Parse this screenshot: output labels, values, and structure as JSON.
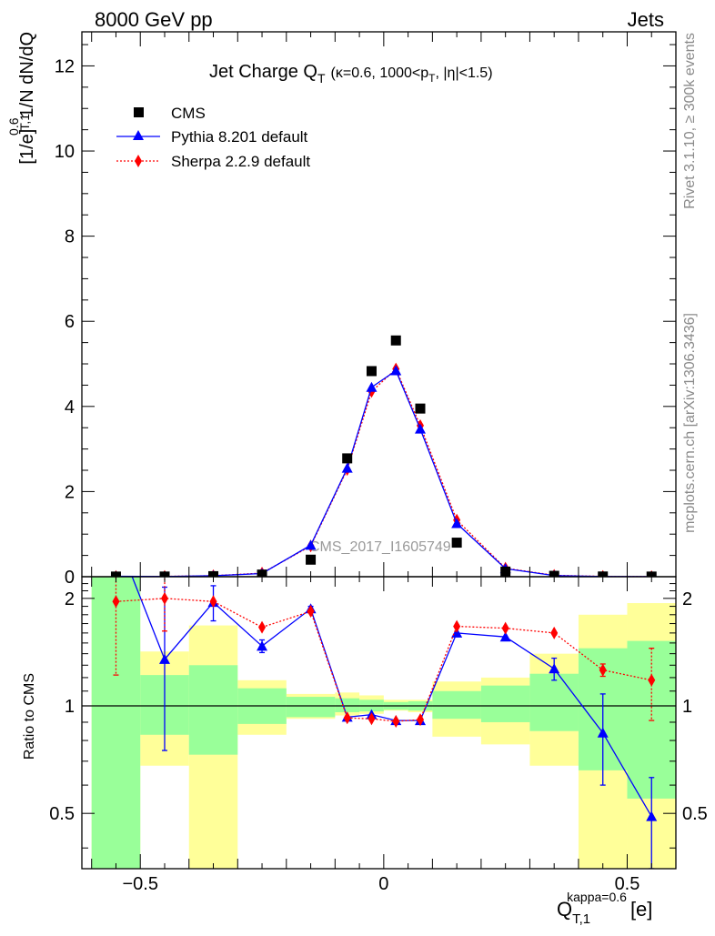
{
  "header": {
    "energy": "8000 GeV pp",
    "category": "Jets"
  },
  "side_labels": {
    "rivet": "Rivet 3.1.10, ≥ 300k events",
    "site": "mcplots.cern.ch [arXiv:1306.3436]"
  },
  "watermark": "CMS_2017_I1605749",
  "main_title": {
    "prefix": "Jet Charge Q",
    "prefix_sub": "T",
    "detail_a": "(κ=0.6, 1000<p",
    "detail_sub": "T",
    "detail_b": ", |η|<1.5)"
  },
  "y_axis_label": {
    "base": "1/N dN/dQ",
    "sup": "0.6",
    "sub": "T,1",
    "unit": "[1/e]"
  },
  "ratio_axis_label": "Ratio to CMS",
  "x_axis_label": {
    "base": "Q",
    "sup": "kappa=0.6",
    "sub": "T,1",
    "unit": "[e]"
  },
  "legend": [
    {
      "name": "CMS",
      "color": "#000000",
      "marker": "square"
    },
    {
      "name": "Pythia 8.201 default",
      "color": "#0000ff",
      "marker": "triangle"
    },
    {
      "name": "Sherpa 2.2.9 default",
      "color": "#ff0000",
      "marker": "diamond"
    }
  ],
  "chart_data": {
    "type": "line",
    "x_range": [
      -0.62,
      0.6
    ],
    "main_ylim": [
      0,
      12.8
    ],
    "ratio_ylim": [
      0.35,
      2.3
    ],
    "ratio_log_scale": true,
    "main_y_ticks": [
      0,
      2,
      4,
      6,
      8,
      10,
      12
    ],
    "x_ticks": [
      -0.5,
      0,
      0.5
    ],
    "x_tick_labels": [
      "−0.5",
      "0",
      "0.5"
    ],
    "ratio_ticks": [
      0.5,
      1,
      2
    ],
    "ratio_tick_labels": [
      "0.5",
      "1",
      "2"
    ],
    "bins": [
      [
        -0.6,
        -0.5
      ],
      [
        -0.5,
        -0.4
      ],
      [
        -0.4,
        -0.3
      ],
      [
        -0.3,
        -0.2
      ],
      [
        -0.2,
        -0.1
      ],
      [
        -0.1,
        -0.05
      ],
      [
        -0.05,
        0.0
      ],
      [
        0.0,
        0.05
      ],
      [
        0.05,
        0.1
      ],
      [
        0.1,
        0.2
      ],
      [
        0.2,
        0.3
      ],
      [
        0.3,
        0.4
      ],
      [
        0.4,
        0.5
      ],
      [
        0.5,
        0.6
      ]
    ],
    "x": [
      -0.55,
      -0.45,
      -0.35,
      -0.25,
      -0.15,
      -0.075,
      -0.025,
      0.025,
      0.075,
      0.15,
      0.25,
      0.35,
      0.45,
      0.55
    ],
    "series": [
      {
        "name": "CMS",
        "values": [
          0.003,
          0.004,
          0.012,
          0.05,
          0.4,
          2.78,
          4.83,
          5.55,
          3.95,
          0.8,
          0.12,
          0.02,
          0.005,
          0.003
        ]
      },
      {
        "name": "Pythia 8.201 default",
        "values": [
          0.01,
          0.006,
          0.023,
          0.075,
          0.74,
          2.55,
          4.45,
          4.84,
          3.47,
          1.25,
          0.19,
          0.027,
          0.004,
          0.0015
        ]
      },
      {
        "name": "Sherpa 2.2.9 default",
        "values": [
          0.006,
          0.008,
          0.024,
          0.085,
          0.72,
          2.52,
          4.35,
          4.88,
          3.55,
          1.33,
          0.2,
          0.033,
          0.007,
          0.0035
        ]
      }
    ],
    "ratio_series": [
      {
        "name": "Pythia 8.201 default",
        "values": [
          3.0,
          1.35,
          1.95,
          1.47,
          1.87,
          0.93,
          0.945,
          0.91,
          0.91,
          1.6,
          1.56,
          1.27,
          0.84,
          0.49
        ],
        "err_low": [
          0.0,
          0.6,
          0.22,
          0.06,
          0.03,
          0.0,
          0.0,
          0.0,
          0.0,
          0.0,
          0.0,
          0.09,
          0.24,
          0.14
        ],
        "err_high": [
          0.0,
          0.8,
          0.22,
          0.06,
          0.03,
          0.0,
          0.0,
          0.0,
          0.0,
          0.0,
          0.0,
          0.09,
          0.24,
          0.14
        ]
      },
      {
        "name": "Sherpa 2.2.9 default",
        "values": [
          1.96,
          2.0,
          1.96,
          1.66,
          1.84,
          0.925,
          0.92,
          0.905,
          0.915,
          1.67,
          1.65,
          1.6,
          1.26,
          1.18
        ],
        "err_low": [
          0.74,
          0.38,
          0.0,
          0.0,
          0.0,
          0.0,
          0.0,
          0.0,
          0.0,
          0.0,
          0.0,
          0.0,
          0.05,
          0.27
        ],
        "err_high": [
          0.74,
          0.38,
          0.0,
          0.0,
          0.0,
          0.0,
          0.0,
          0.0,
          0.0,
          0.0,
          0.0,
          0.0,
          0.05,
          0.27
        ]
      }
    ],
    "band_inner": [
      {
        "low": 0.35,
        "high": 3.0
      },
      {
        "low": 0.83,
        "high": 1.22
      },
      {
        "low": 0.73,
        "high": 1.3
      },
      {
        "low": 0.89,
        "high": 1.12
      },
      {
        "low": 0.93,
        "high": 1.06
      },
      {
        "low": 0.96,
        "high": 1.05
      },
      {
        "low": 0.965,
        "high": 1.04
      },
      {
        "low": 0.975,
        "high": 1.025
      },
      {
        "low": 0.97,
        "high": 1.03
      },
      {
        "low": 0.92,
        "high": 1.1
      },
      {
        "low": 0.9,
        "high": 1.14
      },
      {
        "low": 0.85,
        "high": 1.23
      },
      {
        "low": 0.66,
        "high": 1.45
      },
      {
        "low": 0.55,
        "high": 1.52
      }
    ],
    "band_outer": [
      {
        "low": 0.35,
        "high": 3.0
      },
      {
        "low": 0.68,
        "high": 1.42
      },
      {
        "low": 0.35,
        "high": 1.68
      },
      {
        "low": 0.83,
        "high": 1.18
      },
      {
        "low": 0.92,
        "high": 1.08
      },
      {
        "low": 0.94,
        "high": 1.09
      },
      {
        "low": 0.95,
        "high": 1.07
      },
      {
        "low": 0.97,
        "high": 1.04
      },
      {
        "low": 0.96,
        "high": 1.04
      },
      {
        "low": 0.82,
        "high": 1.17
      },
      {
        "low": 0.78,
        "high": 1.2
      },
      {
        "low": 0.68,
        "high": 1.4
      },
      {
        "low": 0.35,
        "high": 1.8
      },
      {
        "low": 0.35,
        "high": 1.94
      }
    ]
  }
}
